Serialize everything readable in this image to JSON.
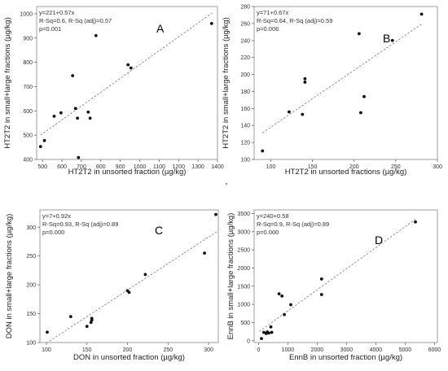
{
  "chart_data": [
    {
      "type": "scatter",
      "panel_letter": "A",
      "xlabel": "HT2T2 in unsorted fraction (µg/kg)",
      "ylabel": "HT2T2 in small+large fractions (µg/kg)",
      "annotations": [
        "y=221+0.57x",
        "R-Sq=0.6, R-Sq (adj)=0.57",
        "p=0.001"
      ],
      "xlim": [
        470,
        1400
      ],
      "ylim": [
        400,
        1030
      ],
      "xticks": [
        500,
        600,
        700,
        800,
        900,
        1000,
        1100,
        1200,
        1300,
        1400
      ],
      "yticks": [
        400,
        500,
        600,
        700,
        800,
        900,
        1000
      ],
      "fit": {
        "intercept": 221,
        "slope": 0.57,
        "x_from": 490,
        "x_to": 1375,
        "style": "dashed"
      },
      "points": [
        {
          "x": 490,
          "y": 453
        },
        {
          "x": 510,
          "y": 478
        },
        {
          "x": 560,
          "y": 578
        },
        {
          "x": 595,
          "y": 592
        },
        {
          "x": 655,
          "y": 745
        },
        {
          "x": 670,
          "y": 610
        },
        {
          "x": 680,
          "y": 570
        },
        {
          "x": 685,
          "y": 408
        },
        {
          "x": 735,
          "y": 595
        },
        {
          "x": 745,
          "y": 570
        },
        {
          "x": 775,
          "y": 910
        },
        {
          "x": 940,
          "y": 790
        },
        {
          "x": 955,
          "y": 777
        },
        {
          "x": 1370,
          "y": 960
        }
      ],
      "grid": false,
      "legend": "none"
    },
    {
      "type": "scatter",
      "panel_letter": "B",
      "xlabel": "HT2T2 in unsorted fractions (µg/kg)",
      "ylabel": "HT2T2 in small+large fractions (µg/kg)",
      "annotations": [
        "y=71+0.67x",
        "R-Sq=0.64, R-Sq (adj)=0.59",
        "p=0.006"
      ],
      "xlim": [
        80,
        300
      ],
      "ylim": [
        100,
        280
      ],
      "xticks": [
        100,
        150,
        200,
        250,
        300
      ],
      "yticks": [
        100,
        120,
        140,
        160,
        180,
        200,
        220,
        240,
        260,
        280
      ],
      "fit": {
        "intercept": 71,
        "slope": 0.67,
        "x_from": 90,
        "x_to": 282,
        "style": "dashed"
      },
      "points": [
        {
          "x": 90,
          "y": 110
        },
        {
          "x": 122,
          "y": 156
        },
        {
          "x": 138,
          "y": 153
        },
        {
          "x": 141,
          "y": 195
        },
        {
          "x": 141,
          "y": 191
        },
        {
          "x": 206,
          "y": 248
        },
        {
          "x": 208,
          "y": 155
        },
        {
          "x": 212,
          "y": 174
        },
        {
          "x": 246,
          "y": 240
        },
        {
          "x": 281,
          "y": 271
        }
      ],
      "grid": false,
      "legend": "none"
    },
    {
      "type": "scatter",
      "panel_letter": "C",
      "xlabel": "DON in unsorted fraction (µg/kg)",
      "ylabel": "DON in small+large fractions (µg/kg)",
      "annotations": [
        "y=7+0.92x",
        "R-Sq=0.93, R-Sq (adj)=0.89",
        "p=0.000"
      ],
      "xlim": [
        92,
        312
      ],
      "ylim": [
        100,
        330
      ],
      "xticks": [
        100,
        150,
        200,
        250,
        300
      ],
      "yticks": [
        100,
        150,
        200,
        250,
        300
      ],
      "fit": {
        "intercept": 7,
        "slope": 0.92,
        "x_from": 100,
        "x_to": 310,
        "style": "dashed"
      },
      "points": [
        {
          "x": 101,
          "y": 118
        },
        {
          "x": 130,
          "y": 145
        },
        {
          "x": 150,
          "y": 128
        },
        {
          "x": 155,
          "y": 135
        },
        {
          "x": 156,
          "y": 139
        },
        {
          "x": 156,
          "y": 142
        },
        {
          "x": 200,
          "y": 190
        },
        {
          "x": 202,
          "y": 187
        },
        {
          "x": 222,
          "y": 218
        },
        {
          "x": 295,
          "y": 255
        },
        {
          "x": 309,
          "y": 322
        }
      ],
      "grid": false,
      "legend": "none"
    },
    {
      "type": "scatter",
      "panel_letter": "D",
      "xlabel": "EnnB in unsorted fraction (µg/kg)",
      "ylabel": "EnnB in small+large fractions (µg/kg)",
      "annotations": [
        "y=240+0.58",
        "R-Sq=0.9, R-Sq (adj)=0.89",
        "p=0.000"
      ],
      "xlim": [
        -150,
        6100
      ],
      "ylim": [
        -50,
        3600
      ],
      "xticks": [
        0,
        1000,
        2000,
        3000,
        4000,
        5000,
        6000
      ],
      "yticks": [
        0,
        500,
        1000,
        1500,
        2000,
        2500,
        3000,
        3500
      ],
      "fit": {
        "intercept": 240,
        "slope": 0.58,
        "x_from": 30,
        "x_to": 5350,
        "style": "dashed"
      },
      "points": [
        {
          "x": 100,
          "y": 60
        },
        {
          "x": 180,
          "y": 230
        },
        {
          "x": 260,
          "y": 200
        },
        {
          "x": 300,
          "y": 240
        },
        {
          "x": 350,
          "y": 210
        },
        {
          "x": 420,
          "y": 380
        },
        {
          "x": 450,
          "y": 230
        },
        {
          "x": 700,
          "y": 1290
        },
        {
          "x": 800,
          "y": 1230
        },
        {
          "x": 880,
          "y": 720
        },
        {
          "x": 1100,
          "y": 990
        },
        {
          "x": 2150,
          "y": 1700
        },
        {
          "x": 2150,
          "y": 1270
        },
        {
          "x": 5350,
          "y": 3270
        }
      ],
      "grid": false,
      "legend": "none"
    }
  ]
}
